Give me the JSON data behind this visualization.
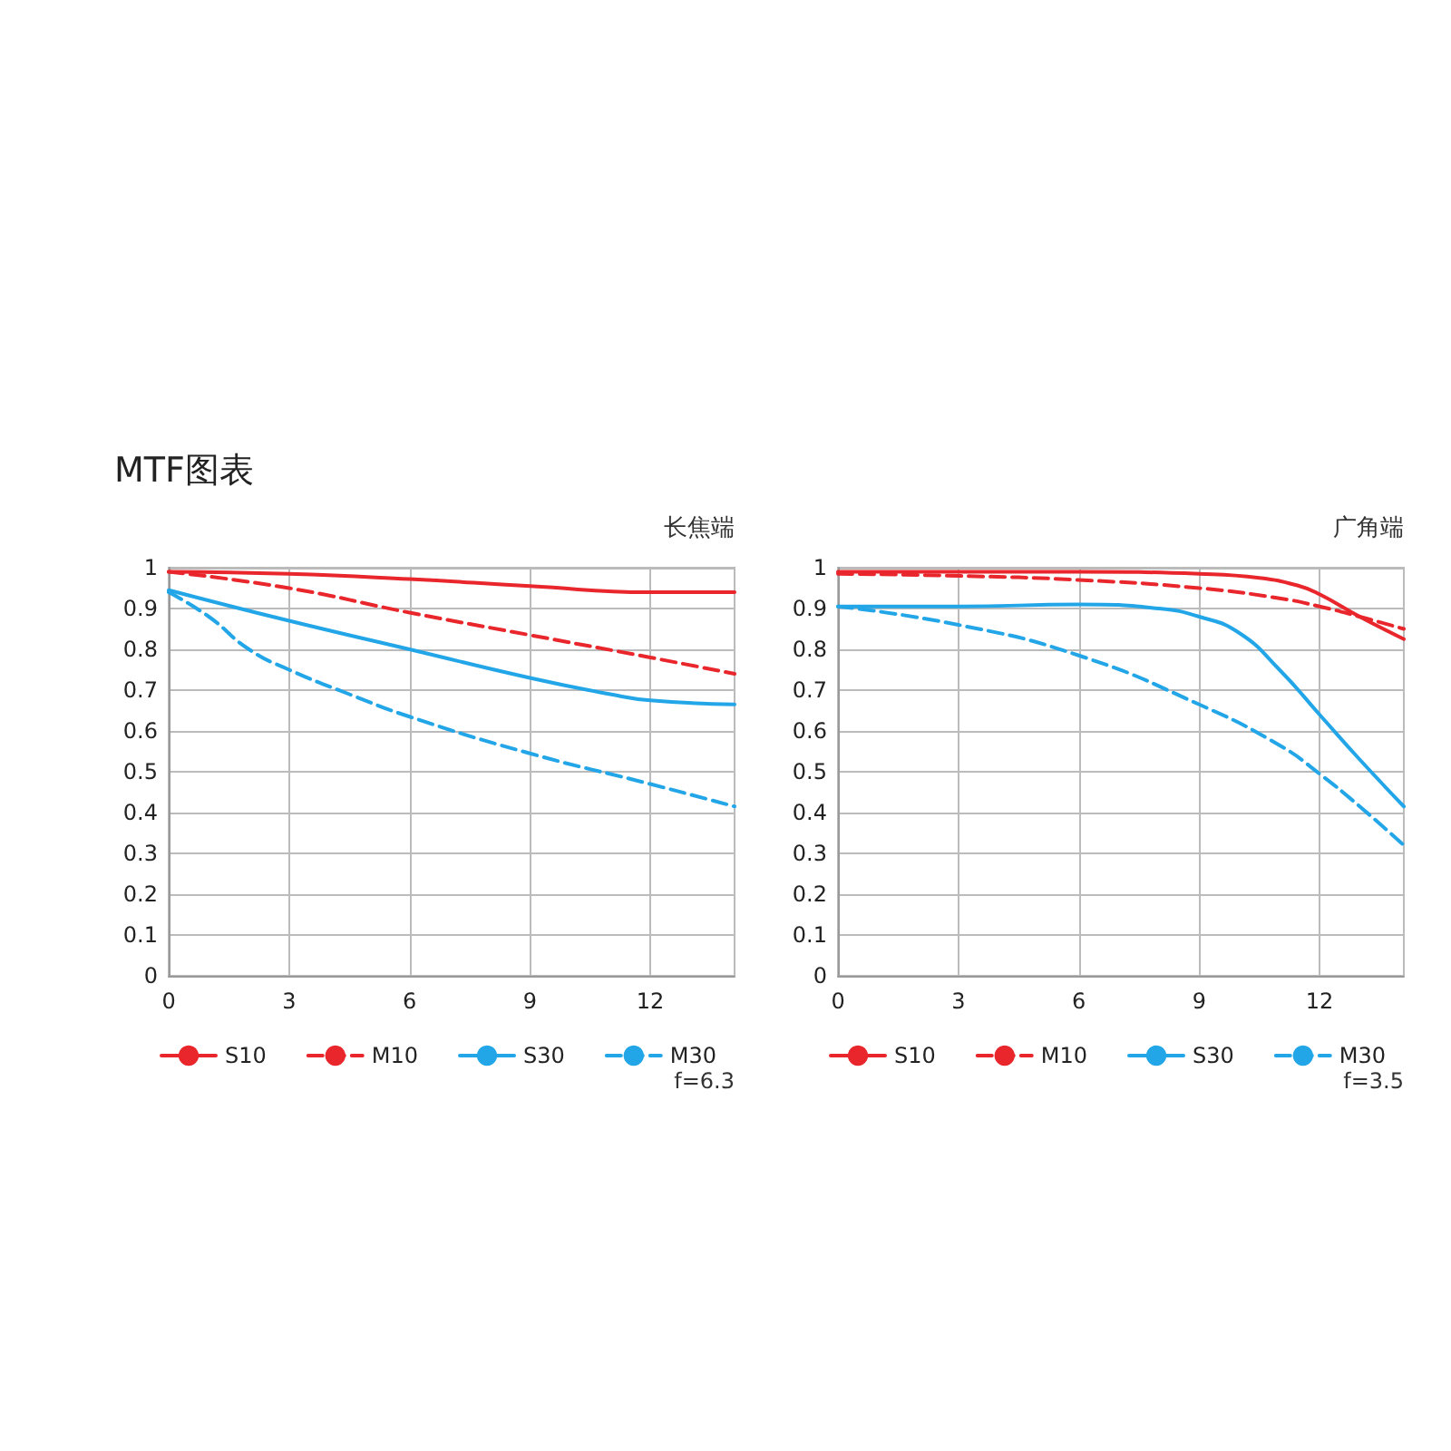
{
  "chart_data": [
    {
      "type": "line",
      "title": "MTF图表",
      "subtitle": "长焦端",
      "annotations": [
        "f=6.3"
      ],
      "xlim": [
        0,
        14.1
      ],
      "xticks": [
        0,
        3,
        6,
        9,
        12
      ],
      "ylim": [
        0,
        1
      ],
      "yticks": [
        0,
        0.1,
        0.2,
        0.3,
        0.4,
        0.5,
        0.6,
        0.7,
        0.8,
        0.9,
        1
      ],
      "grid": true,
      "legend": "bottom",
      "series": [
        {
          "name": "S10",
          "color": "#e8262c",
          "line_style": "solid",
          "x": [
            0,
            3,
            6,
            9,
            12,
            14.1
          ],
          "values": [
            0.99,
            0.985,
            0.972,
            0.955,
            0.94,
            0.94
          ]
        },
        {
          "name": "M10",
          "color": "#e8262c",
          "line_style": "dashed",
          "x": [
            0,
            3,
            6,
            9,
            12,
            14.1
          ],
          "values": [
            0.99,
            0.95,
            0.89,
            0.835,
            0.78,
            0.74
          ]
        },
        {
          "name": "S30",
          "color": "#22a6e8",
          "line_style": "solid",
          "x": [
            0,
            3,
            6,
            9,
            11,
            12,
            14.1
          ],
          "values": [
            0.945,
            0.87,
            0.8,
            0.73,
            0.69,
            0.675,
            0.665
          ]
        },
        {
          "name": "M30",
          "color": "#22a6e8",
          "line_style": "dashed",
          "x": [
            0,
            1,
            2,
            3,
            4.5,
            6,
            9,
            12,
            14.1
          ],
          "values": [
            0.94,
            0.88,
            0.8,
            0.75,
            0.69,
            0.635,
            0.545,
            0.47,
            0.415
          ]
        }
      ]
    },
    {
      "type": "line",
      "subtitle": "广角端",
      "annotations": [
        "f=3.5"
      ],
      "xlim": [
        0,
        14.1
      ],
      "xticks": [
        0,
        3,
        6,
        9,
        12
      ],
      "ylim": [
        0,
        1
      ],
      "yticks": [
        0,
        0.1,
        0.2,
        0.3,
        0.4,
        0.5,
        0.6,
        0.7,
        0.8,
        0.9,
        1
      ],
      "grid": true,
      "legend": "bottom",
      "series": [
        {
          "name": "S10",
          "color": "#e8262c",
          "line_style": "solid",
          "x": [
            0,
            6,
            9,
            10.5,
            11.5,
            12,
            13,
            14.1
          ],
          "values": [
            0.99,
            0.99,
            0.985,
            0.975,
            0.955,
            0.935,
            0.88,
            0.825
          ]
        },
        {
          "name": "M10",
          "color": "#e8262c",
          "line_style": "dashed",
          "x": [
            0,
            3,
            6,
            9,
            11,
            12,
            13,
            14.1
          ],
          "values": [
            0.985,
            0.98,
            0.97,
            0.95,
            0.925,
            0.905,
            0.88,
            0.85
          ]
        },
        {
          "name": "S30",
          "color": "#22a6e8",
          "line_style": "solid",
          "x": [
            0,
            3,
            6,
            8,
            9,
            10,
            11,
            12,
            13,
            14.1
          ],
          "values": [
            0.905,
            0.905,
            0.91,
            0.9,
            0.88,
            0.84,
            0.75,
            0.64,
            0.53,
            0.415
          ]
        },
        {
          "name": "M30",
          "color": "#22a6e8",
          "line_style": "dashed",
          "x": [
            0,
            3,
            6,
            9,
            11,
            12,
            13,
            14.1
          ],
          "values": [
            0.905,
            0.86,
            0.785,
            0.665,
            0.565,
            0.495,
            0.415,
            0.32
          ]
        }
      ]
    }
  ]
}
